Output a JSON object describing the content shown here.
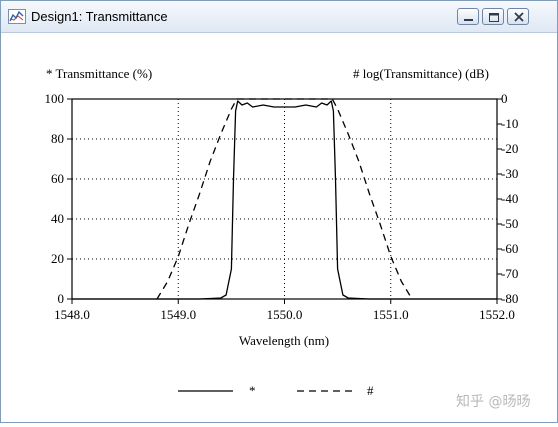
{
  "window": {
    "title": "Design1: Transmittance",
    "icon": "chart-icon",
    "buttons": [
      "minimize-icon",
      "maximize-icon",
      "close-icon"
    ]
  },
  "chart_data": {
    "type": "line",
    "xlabel": "Wavelength (nm)",
    "ylabel_left": "* Transmittance (%)",
    "ylabel_right": "# log(Transmittance) (dB)",
    "xlim": [
      1548.0,
      1552.0
    ],
    "ylim_left": [
      0,
      100
    ],
    "ylim_right": [
      -80,
      0
    ],
    "x_ticks": [
      "1548.0",
      "1549.0",
      "1550.0",
      "1551.0",
      "1552.0"
    ],
    "y_ticks_left": [
      "0",
      "20",
      "40",
      "60",
      "80",
      "100"
    ],
    "y_ticks_right": [
      "0",
      "-10",
      "-20",
      "-30",
      "-40",
      "-50",
      "-60",
      "-70",
      "-80"
    ],
    "grid": "dotted",
    "legend": {
      "position": "bottom",
      "entries": [
        {
          "label": "*",
          "style": "solid"
        },
        {
          "label": "#",
          "style": "dashed"
        }
      ]
    },
    "series": [
      {
        "name": "*",
        "axis": "left",
        "style": "solid",
        "x": [
          1548.0,
          1549.2,
          1549.4,
          1549.45,
          1549.5,
          1549.52,
          1549.54,
          1549.56,
          1549.6,
          1549.65,
          1549.7,
          1549.8,
          1549.9,
          1550.0,
          1550.1,
          1550.2,
          1550.3,
          1550.35,
          1550.4,
          1550.44,
          1550.46,
          1550.48,
          1550.5,
          1550.55,
          1550.6,
          1550.8,
          1552.0
        ],
        "y": [
          0,
          0,
          0.5,
          2,
          15,
          60,
          94,
          99,
          97,
          98,
          96,
          97,
          96,
          96,
          96,
          97,
          96,
          98,
          97,
          99,
          94,
          60,
          15,
          2,
          0.5,
          0,
          0
        ]
      },
      {
        "name": "#",
        "axis": "right",
        "style": "dashed",
        "x": [
          1548.8,
          1548.9,
          1549.0,
          1549.1,
          1549.2,
          1549.3,
          1549.4,
          1549.5,
          1549.55,
          1550.0,
          1550.45,
          1550.5,
          1550.6,
          1550.7,
          1550.8,
          1550.9,
          1551.0,
          1551.1,
          1551.2
        ],
        "y": [
          -80,
          -73,
          -63,
          -50,
          -38,
          -25,
          -14,
          -4,
          0,
          0,
          0,
          -4,
          -14,
          -25,
          -38,
          -50,
          -63,
          -73,
          -80
        ]
      }
    ]
  },
  "watermark": "知乎 @旸旸"
}
